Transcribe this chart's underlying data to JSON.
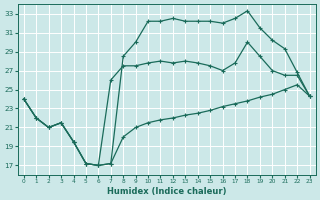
{
  "bg_color": "#cce8e8",
  "grid_color": "#b8d8d8",
  "line_color": "#1a6b5a",
  "marker": "+",
  "xlabel": "Humidex (Indice chaleur)",
  "xlim": [
    -0.5,
    23.5
  ],
  "ylim": [
    16,
    34
  ],
  "yticks": [
    17,
    19,
    21,
    23,
    25,
    27,
    29,
    31,
    33
  ],
  "xticks": [
    0,
    1,
    2,
    3,
    4,
    5,
    6,
    7,
    8,
    9,
    10,
    11,
    12,
    13,
    14,
    15,
    16,
    17,
    18,
    19,
    20,
    21,
    22,
    23
  ],
  "line_upper_x": [
    0,
    1,
    2,
    3,
    4,
    5,
    6,
    7,
    8,
    9,
    10,
    11,
    12,
    13,
    14,
    15,
    16,
    17,
    18,
    19,
    20,
    21,
    22,
    23
  ],
  "line_upper_y": [
    24.0,
    22.0,
    21.0,
    21.5,
    19.5,
    17.2,
    17.0,
    17.2,
    28.5,
    30.0,
    32.2,
    32.2,
    32.5,
    32.2,
    32.2,
    32.2,
    32.0,
    32.5,
    33.3,
    31.5,
    30.2,
    29.3,
    26.8,
    24.3
  ],
  "line_middle_x": [
    0,
    1,
    2,
    3,
    4,
    5,
    6,
    7,
    8,
    9,
    10,
    11,
    12,
    13,
    14,
    15,
    16,
    17,
    18,
    19,
    20,
    21,
    22,
    23
  ],
  "line_middle_y": [
    24.0,
    22.0,
    21.0,
    21.5,
    19.5,
    17.2,
    17.0,
    26.0,
    27.5,
    27.5,
    27.8,
    28.0,
    27.8,
    28.0,
    27.8,
    27.5,
    27.0,
    27.8,
    30.0,
    28.5,
    27.0,
    26.5,
    26.5,
    24.3
  ],
  "line_lower_x": [
    0,
    1,
    2,
    3,
    4,
    5,
    6,
    7,
    8,
    9,
    10,
    11,
    12,
    13,
    14,
    15,
    16,
    17,
    18,
    19,
    20,
    21,
    22,
    23
  ],
  "line_lower_y": [
    24.0,
    22.0,
    21.0,
    21.5,
    19.5,
    17.2,
    17.0,
    17.2,
    20.0,
    21.0,
    21.5,
    21.8,
    22.0,
    22.3,
    22.5,
    22.8,
    23.2,
    23.5,
    23.8,
    24.2,
    24.5,
    25.0,
    25.5,
    24.3
  ]
}
